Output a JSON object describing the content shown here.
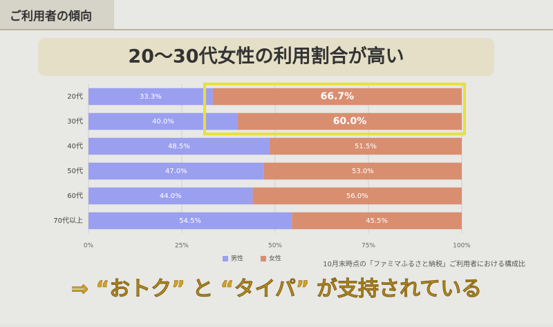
{
  "header": "ご利用者の傾向",
  "chart_data": {
    "type": "stacked-bar-horizontal",
    "title": "20～30代女性の利用割合が高い",
    "categories": [
      "20代",
      "30代",
      "40代",
      "50代",
      "60代",
      "70代以上"
    ],
    "series": [
      {
        "name": "男性",
        "color": "#9b9ff0",
        "values": [
          33.3,
          40.0,
          48.5,
          47.0,
          44.0,
          54.5
        ],
        "value_labels": [
          "33.3%",
          "40.0%",
          "48.5%",
          "47.0%",
          "44.0%",
          "54.5%"
        ]
      },
      {
        "name": "女性",
        "color": "#d98e70",
        "values": [
          66.7,
          60.0,
          51.5,
          53.0,
          56.0,
          45.5
        ],
        "value_labels": [
          "66.7%",
          "60.0%",
          "51.5%",
          "53.0%",
          "56.0%",
          "45.5%"
        ]
      }
    ],
    "xlim": [
      0,
      100
    ],
    "xticks": [
      {
        "value": 0,
        "label": "0%"
      },
      {
        "value": 25,
        "label": "25%"
      },
      {
        "value": 50,
        "label": "50%"
      },
      {
        "value": 75,
        "label": "75%"
      },
      {
        "value": 100,
        "label": "100%"
      }
    ],
    "grid": true,
    "legend": "bottom",
    "annotations": [
      "10月末時点の「ファミマふるさと納税」ご利用者における構成比"
    ]
  },
  "tagline": "⇒ “おトク” と “タイパ” が支持されている"
}
